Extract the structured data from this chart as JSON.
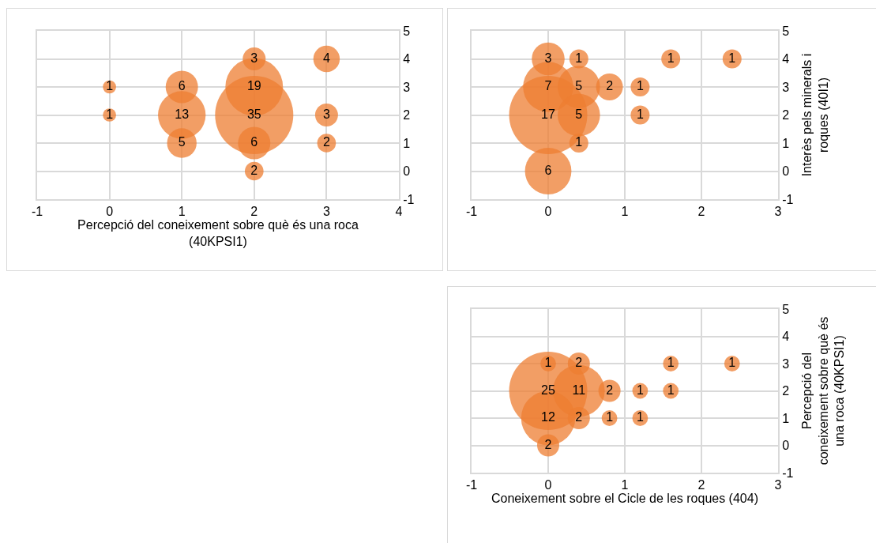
{
  "chart_data": [
    {
      "type": "bubble",
      "xlabel": "Percepció del coneixement sobre què és una roca (40KPSI1)",
      "color": "#ed7d31",
      "grid": true,
      "x": [
        0,
        0,
        1,
        1,
        1,
        2,
        2,
        2,
        2,
        2,
        3,
        3,
        3
      ],
      "values": [
        3,
        2,
        3,
        2,
        1,
        4,
        3,
        2,
        1,
        0,
        4,
        2,
        1
      ],
      "sizes": [
        1,
        1,
        6,
        13,
        5,
        3,
        19,
        35,
        6,
        2,
        4,
        3,
        2
      ],
      "value_labels": [
        "1",
        "1",
        "6",
        "13",
        "5",
        "3",
        "19",
        "35",
        "6",
        "2",
        "4",
        "3",
        "2"
      ],
      "xlim": [
        -1,
        4
      ],
      "xticks": [
        -1,
        0,
        1,
        2,
        3,
        4
      ],
      "ylim": [
        -1,
        5
      ],
      "yticks": [
        -1,
        0,
        1,
        2,
        3,
        4,
        5
      ]
    },
    {
      "type": "bubble",
      "ylabel": "Interès pels minerals i roques (40I1)",
      "color": "#ed7d31",
      "grid": true,
      "x": [
        0,
        0.4,
        1.6,
        2.4,
        0,
        0.4,
        0.8,
        1.2,
        0,
        0.4,
        1.2,
        0.4,
        0
      ],
      "values": [
        4,
        4,
        4,
        4,
        3,
        3,
        3,
        3,
        2,
        2,
        2,
        1,
        0
      ],
      "sizes": [
        3,
        1,
        1,
        1,
        7,
        5,
        2,
        1,
        17,
        5,
        1,
        1,
        6
      ],
      "value_labels": [
        "3",
        "1",
        "1",
        "1",
        "7",
        "5",
        "2",
        "1",
        "17",
        "5",
        "1",
        "1",
        "6"
      ],
      "xlim": [
        -1,
        3
      ],
      "xticks": [
        -1,
        0,
        1,
        2,
        3
      ],
      "ylim": [
        -1,
        5
      ],
      "yticks": [
        -1,
        0,
        1,
        2,
        3,
        4,
        5
      ]
    },
    {
      "type": "bubble",
      "xlabel": "Coneixement sobre el Cicle de les roques (404)",
      "ylabel": "Percepció del coneixement sobre què és una roca (40KPSI1)",
      "color": "#ed7d31",
      "grid": true,
      "x": [
        0,
        0.4,
        1.6,
        2.4,
        0,
        0.4,
        0.8,
        1.2,
        1.6,
        0,
        0.4,
        0.8,
        1.2,
        0
      ],
      "values": [
        3,
        3,
        3,
        3,
        2,
        2,
        2,
        2,
        2,
        1,
        1,
        1,
        1,
        0
      ],
      "sizes": [
        1,
        2,
        1,
        1,
        25,
        11,
        2,
        1,
        1,
        12,
        2,
        1,
        1,
        2
      ],
      "value_labels": [
        "1",
        "2",
        "1",
        "1",
        "25",
        "11",
        "2",
        "1",
        "1",
        "12",
        "2",
        "1",
        "1",
        "2"
      ],
      "xlim": [
        -1,
        3
      ],
      "xticks": [
        -1,
        0,
        1,
        2,
        3
      ],
      "ylim": [
        -1,
        5
      ],
      "yticks": [
        -1,
        0,
        1,
        2,
        3,
        4,
        5
      ]
    }
  ]
}
